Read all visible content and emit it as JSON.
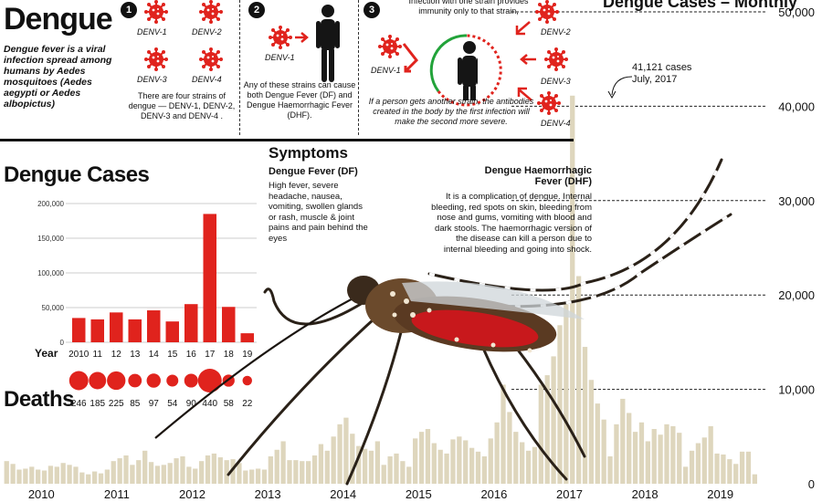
{
  "header": {
    "title": "Dengue",
    "intro": "Dengue fever is a viral infection spread among humans by Aedes mosquitoes (Aedes aegypti or Aedes albopictus)"
  },
  "strains": {
    "step1_number": "1",
    "step2_number": "2",
    "step3_number": "3",
    "labels": [
      "DENV-1",
      "DENV-2",
      "DENV-3",
      "DENV-4"
    ],
    "step1_note": "There are four strains of dengue — DENV-1, DENV-2, DENV-3 and DENV-4 .",
    "step2_label": "DENV-1",
    "step2_note": "Any of these strains can cause both Dengue Fever (DF) and Dengue Haemorrhagic Fever (DHF).",
    "step3_top_note": "Infection with one strain provides immunity only to that strain,",
    "step3_labels": [
      "DENV-1",
      "DENV-2",
      "DENV-3",
      "DENV-4"
    ],
    "step3_note": "If a person gets another strain, the antibodies created in the body by the first infection will make the second more severe."
  },
  "symptoms": {
    "title": "Symptoms",
    "df_title": "Dengue Fever (DF)",
    "df_text": "High fever, severe headache, nausea, vomiting, swollen glands or rash, muscle & joint pains and pain behind the eyes",
    "dhf_title": "Dengue Haemorrhagic Fever (DHF)",
    "dhf_text": "It is a complication of dengue. Internal bleeding, red spots on skin, bleeding from nose and gums, vomiting with blood and dark stools. The haemorrhagic version of the disease can kill a person due to internal bleeding and going into shock."
  },
  "monthly_title": "Dengue Cases – Monthly",
  "annotation": {
    "value": "41,121 cases",
    "date": "July, 2017"
  },
  "colors": {
    "accent": "#e0231d",
    "monthly_bar": "#ded6bd",
    "dark": "#111111"
  },
  "chart_data": [
    {
      "type": "bar",
      "title": "Dengue Cases",
      "xlabel": "Year",
      "categories": [
        "2010",
        "11",
        "12",
        "13",
        "14",
        "15",
        "16",
        "17",
        "18",
        "19"
      ],
      "values": [
        35000,
        33000,
        43000,
        33000,
        46000,
        30000,
        55000,
        185000,
        51000,
        13000
      ],
      "ylim": [
        0,
        200000
      ],
      "yticks": [
        "0",
        "50,000",
        "100,000",
        "150,000",
        "200,000"
      ],
      "grid": true
    },
    {
      "type": "scatter",
      "title": "Deaths",
      "categories": [
        "2010",
        "11",
        "12",
        "13",
        "14",
        "15",
        "16",
        "17",
        "18",
        "19"
      ],
      "values": [
        246,
        185,
        225,
        85,
        97,
        54,
        90,
        440,
        58,
        22
      ],
      "labels": [
        "246",
        "185",
        "225",
        "85",
        "97",
        "54",
        "90",
        "440",
        "58",
        "22"
      ]
    },
    {
      "type": "bar",
      "title": "Dengue Cases – Monthly",
      "x_labels": [
        "2010",
        "2011",
        "2012",
        "2013",
        "2014",
        "2015",
        "2016",
        "2017",
        "2018",
        "2019"
      ],
      "values": [
        2400,
        2100,
        1500,
        1600,
        1800,
        1500,
        1400,
        1900,
        1800,
        2200,
        2000,
        1800,
        1200,
        1000,
        1300,
        1100,
        1500,
        2400,
        2700,
        3000,
        2000,
        2500,
        3500,
        2300,
        1900,
        2000,
        2200,
        2700,
        2900,
        1800,
        1600,
        2400,
        3000,
        3200,
        2800,
        2500,
        2600,
        2200,
        1400,
        1500,
        1600,
        1500,
        2900,
        3600,
        4500,
        2500,
        2500,
        2400,
        2400,
        3000,
        4200,
        3500,
        5000,
        6300,
        7000,
        5300,
        4000,
        3700,
        3500,
        4500,
        2000,
        2900,
        3200,
        2400,
        1800,
        4800,
        5500,
        5800,
        4300,
        3600,
        3200,
        4700,
        5000,
        4600,
        3800,
        3400,
        2900,
        4800,
        6500,
        10500,
        7600,
        5500,
        4400,
        3500,
        3900,
        10500,
        11500,
        13500,
        16800,
        19000,
        41121,
        22000,
        14500,
        11000,
        8500,
        6800,
        2900,
        6300,
        9000,
        7500,
        5500,
        6500,
        4500,
        5800,
        5200,
        6300,
        6100,
        5400,
        1800,
        3500,
        4300,
        4900,
        6100,
        3200,
        3100,
        2600,
        2100,
        3400,
        3400,
        1000
      ],
      "ylim": [
        0,
        50000
      ],
      "yticks": [
        "0",
        "10,000",
        "20,000",
        "30,000",
        "40,000",
        "50,000"
      ],
      "ylabel_side": "right",
      "grid": "dashed"
    }
  ]
}
